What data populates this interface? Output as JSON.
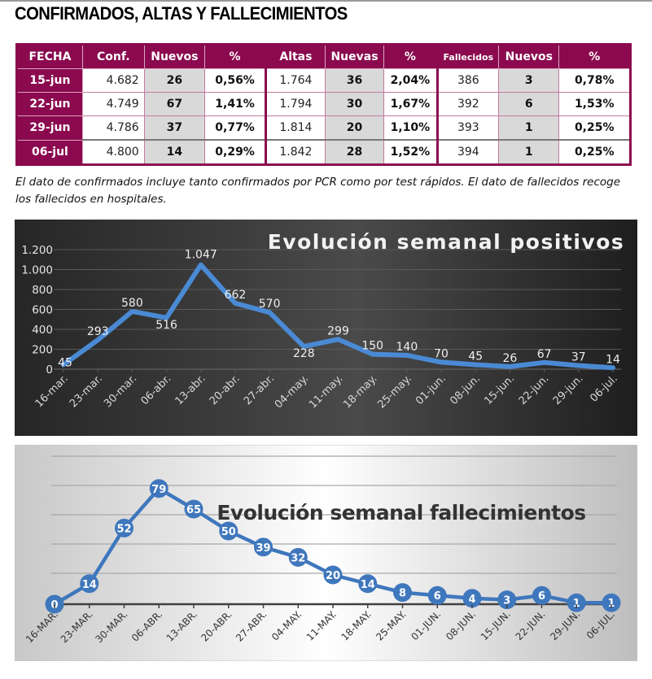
{
  "page_title": "CONFIRMADOS, ALTAS Y FALLECIMIENTOS",
  "table": {
    "headers": [
      "FECHA",
      "Conf.",
      "Nuevos",
      "%",
      "Altas",
      "Nuevas",
      "%",
      "Fallecidos",
      "Nuevos",
      "%"
    ],
    "rows": [
      {
        "fecha": "15-jun",
        "conf": "4.682",
        "conf_nuevos": "26",
        "conf_pct": "0,56%",
        "altas": "1.764",
        "altas_nuevas": "36",
        "altas_pct": "2,04%",
        "fallecidos": "386",
        "fall_nuevos": "3",
        "fall_pct": "0,78%"
      },
      {
        "fecha": "22-jun",
        "conf": "4.749",
        "conf_nuevos": "67",
        "conf_pct": "1,41%",
        "altas": "1.794",
        "altas_nuevas": "30",
        "altas_pct": "1,67%",
        "fallecidos": "392",
        "fall_nuevos": "6",
        "fall_pct": "1,53%"
      },
      {
        "fecha": "29-jun",
        "conf": "4.786",
        "conf_nuevos": "37",
        "conf_pct": "0,77%",
        "altas": "1.814",
        "altas_nuevas": "20",
        "altas_pct": "1,10%",
        "fallecidos": "393",
        "fall_nuevos": "1",
        "fall_pct": "0,25%"
      },
      {
        "fecha": "06-jul",
        "conf": "4.800",
        "conf_nuevos": "14",
        "conf_pct": "0,29%",
        "altas": "1.842",
        "altas_nuevas": "28",
        "altas_pct": "1,52%",
        "fallecidos": "394",
        "fall_nuevos": "1",
        "fall_pct": "0,25%"
      }
    ]
  },
  "note": "El dato de confirmados incluye tanto confirmados por PCR como por test rápidos. El dato de fallecidos recoge los fallecidos en hospitales.",
  "colors": {
    "table_header": "#8b0a4f",
    "line_blue": "#4a8ad4",
    "marker_blue": "#3f77bd"
  },
  "chart_data": [
    {
      "type": "line",
      "title": "Evolución semanal positivos",
      "xlabel": "",
      "ylabel": "",
      "categories": [
        "16-mar.",
        "23-mar.",
        "30-mar.",
        "06-abr.",
        "13-abr.",
        "20-abr.",
        "27-abr.",
        "04-may.",
        "11-may.",
        "18-may.",
        "25-may.",
        "01-jun.",
        "08-jun.",
        "15-jun.",
        "22-jun.",
        "29-jun.",
        "06-jul."
      ],
      "values": [
        45,
        293,
        580,
        516,
        1047,
        662,
        570,
        228,
        299,
        150,
        140,
        70,
        45,
        26,
        67,
        37,
        14
      ],
      "value_labels": [
        "45",
        "293",
        "580",
        "516",
        "1.047",
        "662",
        "570",
        "228",
        "299",
        "150",
        "140",
        "70",
        "45",
        "26",
        "67",
        "37",
        "14"
      ],
      "yticks": [
        0,
        200,
        400,
        600,
        800,
        1000,
        1200
      ],
      "ytick_labels": [
        "0",
        "200",
        "400",
        "600",
        "800",
        "1.000",
        "1.200"
      ],
      "ylim": [
        0,
        1200
      ],
      "grid": true,
      "legend": "none"
    },
    {
      "type": "line",
      "title": "Evolución semanal fallecimientos",
      "xlabel": "",
      "ylabel": "",
      "categories": [
        "16-MAR.",
        "23-MAR.",
        "30-MAR.",
        "06-ABR.",
        "13-ABR.",
        "20-ABR.",
        "27-ABR.",
        "04-MAY.",
        "11-MAY.",
        "18-MAY.",
        "25-MAY.",
        "01-JUN.",
        "08-JUN.",
        "15-JUN.",
        "22-JUN.",
        "29-JUN.",
        "06-JUL."
      ],
      "values": [
        0,
        14,
        52,
        79,
        65,
        50,
        39,
        32,
        20,
        14,
        8,
        6,
        4,
        3,
        6,
        1,
        1
      ],
      "value_labels": [
        "0",
        "14",
        "52",
        "79",
        "65",
        "50",
        "39",
        "32",
        "20",
        "14",
        "8",
        "6",
        "4",
        "3",
        "6",
        "1",
        "1"
      ],
      "ylim": [
        0,
        100
      ],
      "grid": true,
      "legend": "none"
    }
  ]
}
